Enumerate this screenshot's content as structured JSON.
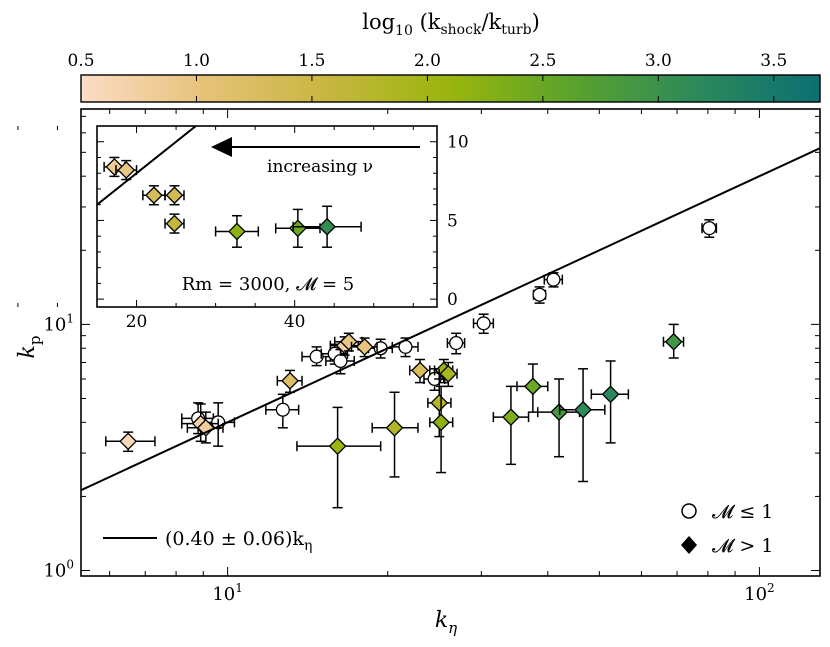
{
  "colorbar": {
    "label": "log₁₀ (k_shock / k_turb)",
    "label_main": "log",
    "label_sub": "10",
    "label_frac": "(k",
    "label_num_sub": "shock",
    "label_mid": "/k",
    "label_den_sub": "turb",
    "label_close": ")",
    "range": [
      0.5,
      3.7
    ],
    "ticks": [
      "0.5",
      "1.0",
      "1.5",
      "2.0",
      "2.5",
      "3.0",
      "3.5"
    ],
    "tick_values": [
      0.5,
      1.0,
      1.5,
      2.0,
      2.5,
      3.0,
      3.5
    ],
    "colormap": [
      "#fcdcc6",
      "#e6c278",
      "#c8b640",
      "#99b50d",
      "#5aa22d",
      "#2c8a5a",
      "#0b6f74"
    ]
  },
  "legend": {
    "fit": "(0.40 ± 0.06)k",
    "fit_sub": "η",
    "circle": "𝓜 ≤ 1",
    "diamond": "𝓜 > 1"
  },
  "inset": {
    "arrow_label": "increasing ν",
    "annotation": "Rm = 3000, 𝓜 = 5",
    "xticks": [
      "20",
      "40"
    ],
    "yticks": [
      "0",
      "5",
      "10"
    ]
  },
  "chart_data": [
    {
      "type": "scatter",
      "panel": "main",
      "xlabel": "k",
      "xlabel_sub": "η",
      "ylabel": "k",
      "ylabel_sub": "p",
      "xscale": "log",
      "yscale": "log",
      "xlim": [
        5.3,
        130
      ],
      "ylim": [
        0.95,
        75
      ],
      "xticks": [
        {
          "value": 10,
          "base": "10",
          "exp": "1"
        },
        {
          "value": 100,
          "base": "10",
          "exp": "2"
        }
      ],
      "yticks": [
        {
          "value": 1,
          "base": "10",
          "exp": "0"
        },
        {
          "value": 10,
          "base": "10",
          "exp": "1"
        }
      ],
      "fit": {
        "slope": 0.4,
        "label": "(0.40 ± 0.06)kη"
      },
      "series": [
        {
          "name": "𝓜 ≤ 1",
          "marker": "circle",
          "points": [
            {
              "x": 8.8,
              "y": 4.15,
              "xlo": 8.2,
              "xhi": 9.4,
              "ylo": 3.6,
              "yhi": 4.8
            },
            {
              "x": 9.6,
              "y": 4.0,
              "xlo": 8.9,
              "xhi": 10.3,
              "ylo": 3.2,
              "yhi": 4.8
            },
            {
              "x": 12.7,
              "y": 4.5,
              "xlo": 11.8,
              "xhi": 13.6,
              "ylo": 3.8,
              "yhi": 5.2
            },
            {
              "x": 14.7,
              "y": 7.4,
              "xlo": 13.8,
              "xhi": 15.6,
              "ylo": 6.8,
              "yhi": 8.1
            },
            {
              "x": 15.9,
              "y": 7.6,
              "xlo": 15.0,
              "xhi": 16.8,
              "ylo": 6.9,
              "yhi": 8.3
            },
            {
              "x": 16.3,
              "y": 7.1,
              "xlo": 15.3,
              "xhi": 17.3,
              "ylo": 6.3,
              "yhi": 7.9
            },
            {
              "x": 19.4,
              "y": 8.0,
              "xlo": 18.4,
              "xhi": 20.4,
              "ylo": 7.3,
              "yhi": 8.7
            },
            {
              "x": 21.6,
              "y": 8.1,
              "xlo": 20.4,
              "xhi": 22.8,
              "ylo": 7.4,
              "yhi": 8.8
            },
            {
              "x": 24.5,
              "y": 6.0,
              "xlo": 23.4,
              "xhi": 25.6,
              "ylo": 5.4,
              "yhi": 6.6
            },
            {
              "x": 26.9,
              "y": 8.4,
              "xlo": 25.9,
              "xhi": 27.9,
              "ylo": 7.6,
              "yhi": 9.2
            },
            {
              "x": 30.3,
              "y": 10.1,
              "xlo": 29.0,
              "xhi": 31.6,
              "ylo": 9.2,
              "yhi": 11.0
            },
            {
              "x": 38.6,
              "y": 13.2,
              "xlo": 37.6,
              "xhi": 39.6,
              "ylo": 12.2,
              "yhi": 14.2
            },
            {
              "x": 41.0,
              "y": 15.2,
              "xlo": 39.4,
              "xhi": 42.6,
              "ylo": 14.2,
              "yhi": 16.2
            },
            {
              "x": 80.5,
              "y": 24.6,
              "xlo": 78.0,
              "xhi": 83.0,
              "ylo": 22.6,
              "yhi": 26.6
            }
          ]
        },
        {
          "name": "𝓜 > 1",
          "marker": "diamond",
          "points": [
            {
              "x": 6.5,
              "y": 3.35,
              "xlo": 5.9,
              "xhi": 7.3,
              "ylo": 3.05,
              "yhi": 3.65,
              "c": 0.6
            },
            {
              "x": 8.9,
              "y": 3.95,
              "xlo": 8.2,
              "xhi": 9.6,
              "ylo": 3.35,
              "yhi": 4.75,
              "c": 0.7
            },
            {
              "x": 9.1,
              "y": 3.8,
              "xlo": 8.4,
              "xhi": 9.8,
              "ylo": 3.3,
              "yhi": 4.4,
              "c": 0.8
            },
            {
              "x": 13.1,
              "y": 5.9,
              "xlo": 12.4,
              "xhi": 13.8,
              "ylo": 5.3,
              "yhi": 6.5,
              "c": 1.2
            },
            {
              "x": 16.6,
              "y": 8.2,
              "xlo": 15.6,
              "xhi": 17.6,
              "ylo": 7.5,
              "yhi": 8.9,
              "c": 0.75
            },
            {
              "x": 16.9,
              "y": 8.5,
              "xlo": 15.9,
              "xhi": 17.9,
              "ylo": 7.8,
              "yhi": 9.2,
              "c": 0.95
            },
            {
              "x": 18.1,
              "y": 8.1,
              "xlo": 17.1,
              "xhi": 19.1,
              "ylo": 7.4,
              "yhi": 8.8,
              "c": 1.0
            },
            {
              "x": 23.0,
              "y": 6.5,
              "xlo": 22.0,
              "xhi": 24.0,
              "ylo": 5.8,
              "yhi": 7.2,
              "c": 1.3
            },
            {
              "x": 25.5,
              "y": 6.5,
              "xlo": 24.5,
              "xhi": 26.5,
              "ylo": 5.8,
              "yhi": 7.2,
              "c": 2.0
            },
            {
              "x": 26.0,
              "y": 6.3,
              "xlo": 25.0,
              "xhi": 27.0,
              "ylo": 5.6,
              "yhi": 7.0,
              "c": 1.9
            },
            {
              "x": 16.1,
              "y": 3.2,
              "xlo": 13.5,
              "xhi": 19.4,
              "ylo": 1.8,
              "yhi": 4.6,
              "c": 2.05
            },
            {
              "x": 20.6,
              "y": 3.8,
              "xlo": 18.7,
              "xhi": 22.8,
              "ylo": 2.4,
              "yhi": 5.3,
              "c": 1.85
            },
            {
              "x": 25.0,
              "y": 4.8,
              "xlo": 23.8,
              "xhi": 26.3,
              "ylo": 3.5,
              "yhi": 6.0,
              "c": 1.8
            },
            {
              "x": 25.2,
              "y": 4.0,
              "xlo": 24.0,
              "xhi": 26.5,
              "ylo": 2.5,
              "yhi": 5.6,
              "c": 2.2
            },
            {
              "x": 34.1,
              "y": 4.2,
              "xlo": 31.6,
              "xhi": 36.8,
              "ylo": 2.7,
              "yhi": 5.6,
              "c": 2.3
            },
            {
              "x": 37.5,
              "y": 5.6,
              "xlo": 35.0,
              "xhi": 40.0,
              "ylo": 4.4,
              "yhi": 6.9,
              "c": 2.5
            },
            {
              "x": 42.0,
              "y": 4.4,
              "xlo": 38.3,
              "xhi": 45.9,
              "ylo": 2.9,
              "yhi": 6.0,
              "c": 2.85
            },
            {
              "x": 46.6,
              "y": 4.5,
              "xlo": 42.1,
              "xhi": 51.2,
              "ylo": 2.3,
              "yhi": 6.6,
              "c": 3.15
            },
            {
              "x": 52.5,
              "y": 5.2,
              "xlo": 48.3,
              "xhi": 56.7,
              "ylo": 3.3,
              "yhi": 7.1,
              "c": 3.2
            },
            {
              "x": 69.0,
              "y": 8.5,
              "xlo": 66.0,
              "xhi": 72.0,
              "ylo": 7.3,
              "yhi": 10.0,
              "c": 2.9
            }
          ]
        }
      ]
    },
    {
      "type": "scatter",
      "panel": "inset",
      "xscale": "linear",
      "yscale": "linear",
      "xlim": [
        15,
        58
      ],
      "ylim": [
        -0.5,
        11
      ],
      "xticks": [
        20,
        40
      ],
      "yticks": [
        0,
        5,
        10
      ],
      "series": [
        {
          "name": "𝓜 > 1",
          "marker": "diamond",
          "points": [
            {
              "x": 17.2,
              "y": 8.4,
              "xlo": 15.9,
              "xhi": 18.5,
              "ylo": 7.8,
              "yhi": 9.0,
              "c": 0.85
            },
            {
              "x": 18.7,
              "y": 8.2,
              "xlo": 17.4,
              "xhi": 20.0,
              "ylo": 7.6,
              "yhi": 8.8,
              "c": 0.95
            },
            {
              "x": 22.2,
              "y": 6.6,
              "xlo": 20.8,
              "xhi": 23.6,
              "ylo": 6.0,
              "yhi": 7.2,
              "c": 1.3
            },
            {
              "x": 24.8,
              "y": 6.6,
              "xlo": 23.6,
              "xhi": 26.0,
              "ylo": 6.0,
              "yhi": 7.2,
              "c": 1.4
            },
            {
              "x": 24.8,
              "y": 4.8,
              "xlo": 23.6,
              "xhi": 26.0,
              "ylo": 4.2,
              "yhi": 5.4,
              "c": 1.6
            },
            {
              "x": 32.7,
              "y": 4.3,
              "xlo": 30.0,
              "xhi": 35.4,
              "ylo": 3.3,
              "yhi": 5.3,
              "c": 2.2
            },
            {
              "x": 40.4,
              "y": 4.5,
              "xlo": 37.6,
              "xhi": 43.2,
              "ylo": 3.3,
              "yhi": 5.7,
              "c": 2.5
            },
            {
              "x": 44.1,
              "y": 4.6,
              "xlo": 39.8,
              "xhi": 48.4,
              "ylo": 3.3,
              "yhi": 5.9,
              "c": 3.1
            }
          ]
        }
      ],
      "fit": {
        "slope": 0.4
      }
    }
  ]
}
